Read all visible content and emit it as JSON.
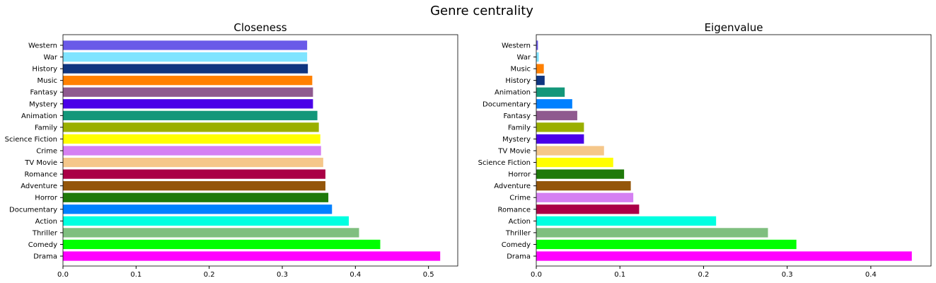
{
  "figure": {
    "title": "Genre centrality"
  },
  "chart_data": [
    {
      "type": "bar",
      "orientation": "horizontal",
      "title": "Closeness",
      "xlabel": "",
      "ylabel": "",
      "xlim": [
        0,
        0.54
      ],
      "xticks": [
        "0.0",
        "0.1",
        "0.2",
        "0.3",
        "0.4",
        "0.5"
      ],
      "grid": false,
      "categories": [
        "Drama",
        "Comedy",
        "Thriller",
        "Action",
        "Documentary",
        "Horror",
        "Adventure",
        "Romance",
        "TV Movie",
        "Crime",
        "Science Fiction",
        "Family",
        "Animation",
        "Mystery",
        "Fantasy",
        "Music",
        "History",
        "War",
        "Western"
      ],
      "values": [
        0.516,
        0.434,
        0.405,
        0.391,
        0.368,
        0.363,
        0.359,
        0.359,
        0.356,
        0.353,
        0.352,
        0.35,
        0.348,
        0.342,
        0.342,
        0.341,
        0.335,
        0.334,
        0.334
      ],
      "colors": [
        "#ff00ff",
        "#00ff00",
        "#7fbf7f",
        "#00ffe0",
        "#0080ff",
        "#1f7a0a",
        "#94560a",
        "#aa0046",
        "#f5c78a",
        "#d580f2",
        "#ffff00",
        "#9aaf00",
        "#13977a",
        "#4a00e8",
        "#8f5a8f",
        "#ff8000",
        "#0f3580",
        "#80e4ff",
        "#6a5ae8"
      ]
    },
    {
      "type": "bar",
      "orientation": "horizontal",
      "title": "Eigenvalue",
      "xlabel": "",
      "ylabel": "",
      "xlim": [
        0,
        0.472
      ],
      "xticks": [
        "0.0",
        "0.1",
        "0.2",
        "0.3",
        "0.4"
      ],
      "grid": false,
      "categories": [
        "Drama",
        "Comedy",
        "Thriller",
        "Action",
        "Romance",
        "Crime",
        "Adventure",
        "Horror",
        "Science Fiction",
        "TV Movie",
        "Mystery",
        "Family",
        "Fantasy",
        "Documentary",
        "Animation",
        "History",
        "Music",
        "War",
        "Western"
      ],
      "values": [
        0.449,
        0.311,
        0.277,
        0.215,
        0.123,
        0.116,
        0.113,
        0.105,
        0.092,
        0.081,
        0.057,
        0.057,
        0.049,
        0.043,
        0.034,
        0.01,
        0.009,
        0.003,
        0.002
      ],
      "colors": [
        "#ff00ff",
        "#00ff00",
        "#7fbf7f",
        "#00ffe0",
        "#aa0046",
        "#d580f2",
        "#94560a",
        "#1f7a0a",
        "#ffff00",
        "#f5c78a",
        "#4a00e8",
        "#9aaf00",
        "#8f5a8f",
        "#0080ff",
        "#13977a",
        "#0f3580",
        "#ff8000",
        "#80e4ff",
        "#6a5ae8"
      ]
    }
  ]
}
